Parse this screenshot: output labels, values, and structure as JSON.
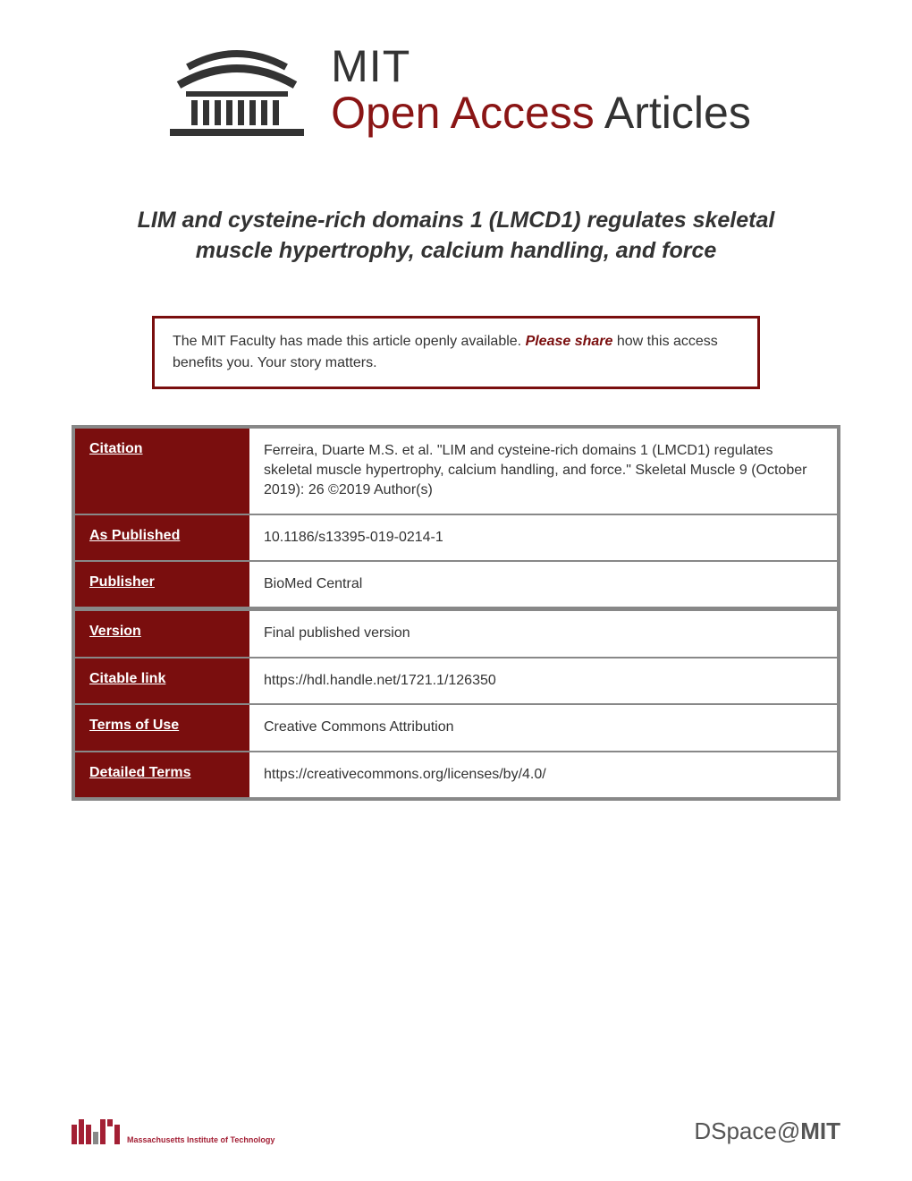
{
  "header": {
    "mit": "MIT",
    "open_access": "Open Access",
    "articles": " Articles"
  },
  "title": "LIM and cysteine-rich domains 1 (LMCD1) regulates skeletal muscle hypertrophy, calcium handling, and force",
  "share_box": {
    "text_before": "The MIT Faculty has made this article openly available. ",
    "please_share": "Please share",
    "text_after": " how this access benefits you. Your story matters."
  },
  "colors": {
    "dark_red": "#7a0e0e",
    "mit_red": "#a31f34",
    "border_gray": "#888888",
    "text": "#333333"
  },
  "metadata": [
    {
      "label": "Citation",
      "value": "Ferreira, Duarte M.S. et al. \"LIM and cysteine-rich domains 1 (LMCD1) regulates skeletal muscle hypertrophy, calcium handling, and force.\" Skeletal Muscle 9 (October 2019): 26 ©2019 Author(s)",
      "section_break": false
    },
    {
      "label": "As Published",
      "value": "10.1186/s13395-019-0214-1",
      "section_break": false
    },
    {
      "label": "Publisher",
      "value": "BioMed Central",
      "section_break": false
    },
    {
      "label": "Version",
      "value": "Final published version",
      "section_break": true
    },
    {
      "label": "Citable link",
      "value": "https://hdl.handle.net/1721.1/126350",
      "section_break": false
    },
    {
      "label": "Terms of Use",
      "value": "Creative Commons Attribution",
      "section_break": false
    },
    {
      "label": "Detailed Terms",
      "value": "https://creativecommons.org/licenses/by/4.0/",
      "section_break": false
    }
  ],
  "footer": {
    "institute": "Massachusetts Institute of Technology",
    "dspace": "DSpace@MIT"
  }
}
